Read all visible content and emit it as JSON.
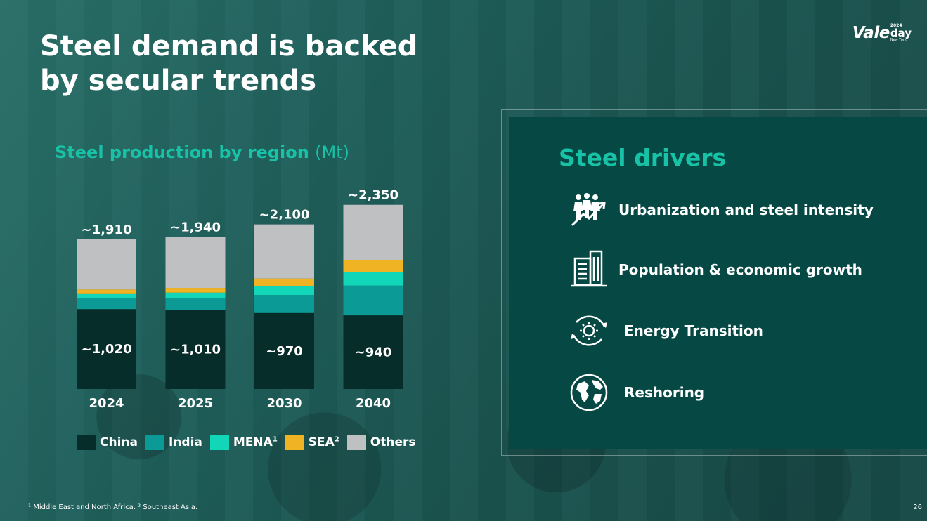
{
  "slide": {
    "title_line1": "Steel demand is backed",
    "title_line2": "by secular trends",
    "page_number": "26"
  },
  "logo": {
    "brand": "Vale",
    "year": "2024",
    "day": "day",
    "city": "New York"
  },
  "chart_section": {
    "title": "Steel production by region",
    "unit": "(Mt)"
  },
  "chart_data": {
    "type": "bar",
    "stacked": true,
    "title": "Steel production by region (Mt)",
    "categories": [
      "2024",
      "2025",
      "2030",
      "2040"
    ],
    "series": [
      {
        "name": "China",
        "values": [
          1020,
          1010,
          970,
          940
        ],
        "color": "#062d2a"
      },
      {
        "name": "India",
        "values": [
          140,
          150,
          230,
          380
        ],
        "color": "#0b9a95"
      },
      {
        "name": "MENA",
        "values": [
          60,
          70,
          110,
          170
        ],
        "color": "#12d6b8"
      },
      {
        "name": "SEA",
        "values": [
          50,
          60,
          100,
          150
        ],
        "color": "#f0b323"
      },
      {
        "name": "Others",
        "values": [
          640,
          650,
          690,
          710
        ],
        "color": "#bfc0c2"
      }
    ],
    "totals": [
      1910,
      1940,
      2100,
      2350
    ],
    "total_labels": [
      "~1,910",
      "~1,940",
      "~2,100",
      "~2,350"
    ],
    "china_labels": [
      "~1,020",
      "~1,010",
      "~970",
      "~940"
    ],
    "ylim": [
      0,
      2400
    ],
    "xlabel": "",
    "ylabel": "",
    "legend_position": "bottom"
  },
  "legend": [
    {
      "label": "China",
      "sup": "",
      "color": "#062d2a"
    },
    {
      "label": "India",
      "sup": "",
      "color": "#0b9a95"
    },
    {
      "label": "MENA",
      "sup": "1",
      "color": "#12d6b8"
    },
    {
      "label": "SEA",
      "sup": "2",
      "color": "#f0b323"
    },
    {
      "label": "Others",
      "sup": "",
      "color": "#bfc0c2"
    }
  ],
  "drivers": {
    "title": "Steel drivers",
    "items": [
      {
        "label": "Urbanization and steel intensity",
        "icon": "urbanization-icon"
      },
      {
        "label": "Population & economic growth",
        "icon": "buildings-icon"
      },
      {
        "label": "Energy Transition",
        "icon": "energy-transition-icon"
      },
      {
        "label": "Reshoring",
        "icon": "globe-icon"
      }
    ]
  },
  "footnote": "¹ Middle East and North Africa.   ² Southeast Asia."
}
